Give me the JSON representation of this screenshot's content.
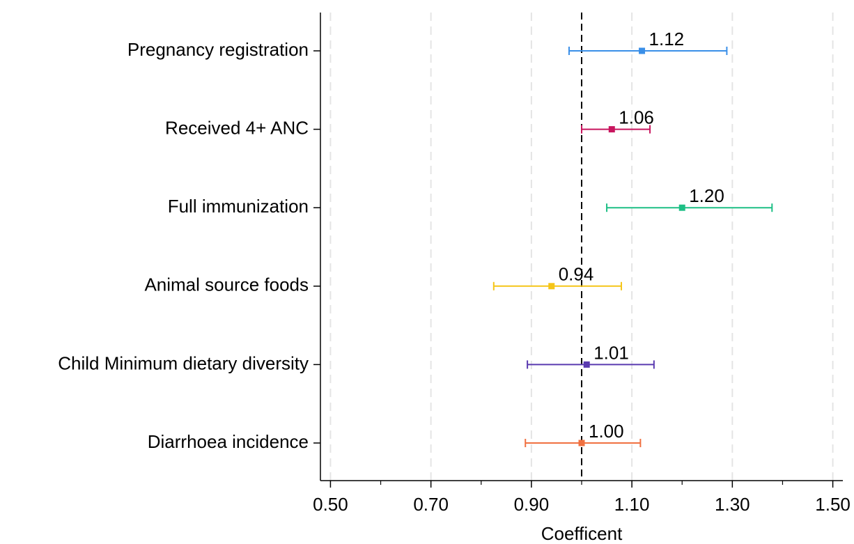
{
  "chart_data": {
    "type": "forest",
    "x_label": "Coefficent",
    "categories": [
      "Pregnancy registration",
      "Received 4+ ANC",
      "Full immunization",
      "Animal source foods",
      "Child Minimum dietary diversity",
      "Diarrhoea incidence"
    ],
    "values": [
      1.12,
      1.06,
      1.2,
      0.94,
      1.01,
      1.0
    ],
    "value_labels": [
      "1.12",
      "1.06",
      "1.20",
      "0.94",
      "1.01",
      "1.00"
    ],
    "ci_low": [
      0.975,
      1.0,
      1.05,
      0.825,
      0.892,
      0.888
    ],
    "ci_high": [
      1.289,
      1.136,
      1.379,
      1.079,
      1.144,
      1.117
    ],
    "colors": [
      "#3a8fe8",
      "#c8155e",
      "#1dbf85",
      "#f5c518",
      "#5a3ab0",
      "#f07040"
    ],
    "xlim": [
      0.48,
      1.52
    ],
    "xticks": [
      {
        "value": 0.5,
        "label": "0.50"
      },
      {
        "value": 0.7,
        "label": "0.70"
      },
      {
        "value": 0.9,
        "label": "0.90"
      },
      {
        "value": 1.1,
        "label": "1.10"
      },
      {
        "value": 1.3,
        "label": "1.30"
      },
      {
        "value": 1.5,
        "label": "1.50"
      }
    ],
    "xminor_ticks": [
      0.6,
      0.8,
      1.0,
      1.2,
      1.4
    ],
    "reference_line": 1,
    "grid": true
  }
}
